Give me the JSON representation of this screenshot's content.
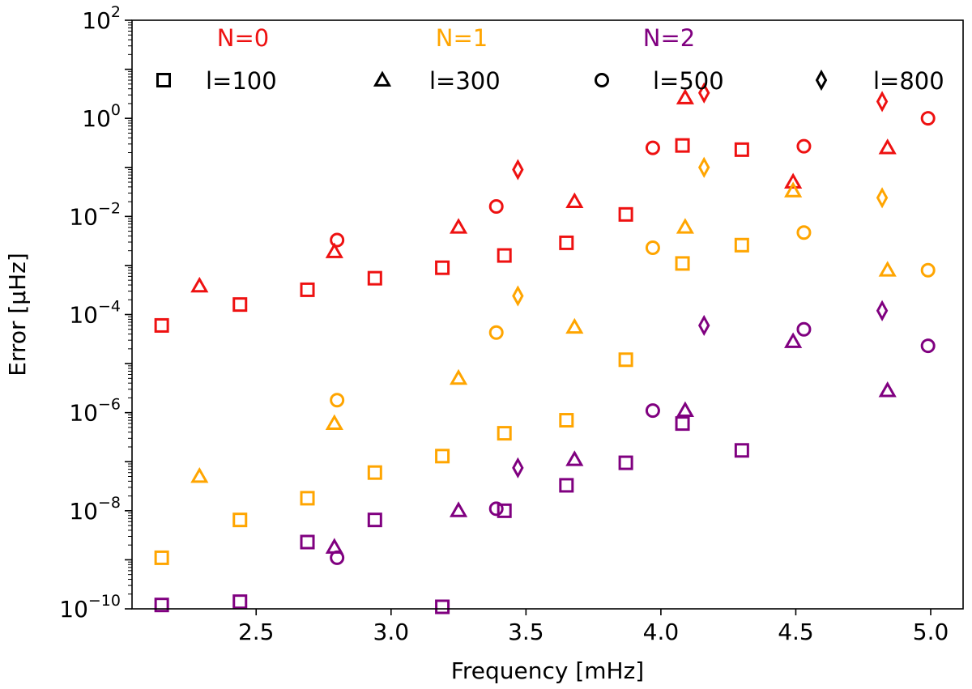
{
  "chart_data": {
    "type": "scatter",
    "xlabel": "Frequency [mHz]",
    "ylabel": "Error [μHz]",
    "yscale": "log",
    "xlim": [
      2.04,
      5.12
    ],
    "ylim": [
      1e-10,
      100
    ],
    "xticks": [
      2.5,
      3.0,
      3.5,
      4.0,
      4.5,
      5.0
    ],
    "xtick_labels": [
      "2.5",
      "3.0",
      "3.5",
      "4.0",
      "4.5",
      "5.0"
    ],
    "yticks": [
      {
        "value": 1e-10,
        "base": "10",
        "exp": "−10"
      },
      {
        "value": 1e-08,
        "base": "10",
        "exp": "−8"
      },
      {
        "value": 1e-06,
        "base": "10",
        "exp": "−6"
      },
      {
        "value": 0.0001,
        "base": "10",
        "exp": "−4"
      },
      {
        "value": 0.01,
        "base": "10",
        "exp": "−2"
      },
      {
        "value": 1,
        "base": "10",
        "exp": "0"
      },
      {
        "value": 100,
        "base": "10",
        "exp": "2"
      }
    ],
    "legend_colors": [
      {
        "label": "N=0",
        "color": "#ee1111"
      },
      {
        "label": "N=1",
        "color": "#ffa500"
      },
      {
        "label": "N=2",
        "color": "#800080"
      }
    ],
    "legend_markers": [
      {
        "label": "l=100",
        "marker": "square"
      },
      {
        "label": "l=300",
        "marker": "triangle"
      },
      {
        "label": "l=500",
        "marker": "circle"
      },
      {
        "label": "l=800",
        "marker": "diamond"
      }
    ],
    "series": [
      {
        "name": "N=0, l=100",
        "color": "#ee1111",
        "marker": "square",
        "x": [
          2.15,
          2.44,
          2.69,
          2.94,
          3.19,
          3.42,
          3.65,
          3.87,
          4.08,
          4.3
        ],
        "y": [
          6e-05,
          0.00016,
          0.00032,
          0.00055,
          0.0009,
          0.0016,
          0.0029,
          0.011,
          0.28,
          0.23
        ]
      },
      {
        "name": "N=0, l=300",
        "color": "#ee1111",
        "marker": "triangle",
        "x": [
          2.29,
          2.79,
          3.25,
          3.68,
          4.09,
          4.49,
          4.84
        ],
        "y": [
          0.00038,
          0.0019,
          0.006,
          0.02,
          2.6,
          0.05,
          0.25
        ]
      },
      {
        "name": "N=0, l=500",
        "color": "#ee1111",
        "marker": "circle",
        "x": [
          2.8,
          3.39,
          3.97,
          4.53,
          4.99
        ],
        "y": [
          0.0033,
          0.016,
          0.25,
          0.27,
          1.0
        ]
      },
      {
        "name": "N=0, l=800",
        "color": "#ee1111",
        "marker": "diamond",
        "x": [
          3.47,
          4.16,
          4.82
        ],
        "y": [
          0.09,
          3.3,
          2.2
        ]
      },
      {
        "name": "N=1, l=100",
        "color": "#ffa500",
        "marker": "square",
        "x": [
          2.15,
          2.44,
          2.69,
          2.94,
          3.19,
          3.42,
          3.65,
          3.87,
          4.08,
          4.3
        ],
        "y": [
          1.1e-09,
          6.5e-09,
          1.8e-08,
          6e-08,
          1.3e-07,
          3.8e-07,
          7e-07,
          1.2e-05,
          0.0011,
          0.0026
        ]
      },
      {
        "name": "N=1, l=300",
        "color": "#ffa500",
        "marker": "triangle",
        "x": [
          2.29,
          2.79,
          3.25,
          3.68,
          4.09,
          4.49,
          4.84
        ],
        "y": [
          5e-08,
          6e-07,
          5e-06,
          5.5e-05,
          0.006,
          0.033,
          0.0008
        ]
      },
      {
        "name": "N=1, l=500",
        "color": "#ffa500",
        "marker": "circle",
        "x": [
          2.8,
          3.39,
          3.97,
          4.53,
          4.99
        ],
        "y": [
          1.8e-06,
          4.3e-05,
          0.0023,
          0.0047,
          0.0008
        ]
      },
      {
        "name": "N=1, l=800",
        "color": "#ffa500",
        "marker": "diamond",
        "x": [
          3.47,
          4.16,
          4.82
        ],
        "y": [
          0.00024,
          0.1,
          0.024
        ]
      },
      {
        "name": "N=2, l=100",
        "color": "#800080",
        "marker": "square",
        "x": [
          2.15,
          2.44,
          2.69,
          2.94,
          3.19,
          3.42,
          3.65,
          3.87,
          4.08,
          4.3
        ],
        "y": [
          1.2e-10,
          1.4e-10,
          2.3e-09,
          6.5e-09,
          1.1e-10,
          1e-08,
          3.3e-08,
          9.5e-08,
          6e-07,
          1.7e-07
        ]
      },
      {
        "name": "N=2, l=300",
        "color": "#800080",
        "marker": "triangle",
        "x": [
          2.79,
          3.25,
          3.68,
          4.09,
          4.49,
          4.84
        ],
        "y": [
          1.8e-09,
          1e-08,
          1.1e-07,
          1.1e-06,
          2.8e-05,
          2.8e-06
        ]
      },
      {
        "name": "N=2, l=500",
        "color": "#800080",
        "marker": "circle",
        "x": [
          2.8,
          3.39,
          3.97,
          4.53,
          4.99
        ],
        "y": [
          1.1e-09,
          1.1e-08,
          1.1e-06,
          5e-05,
          2.3e-05
        ]
      },
      {
        "name": "N=2, l=800",
        "color": "#800080",
        "marker": "diamond",
        "x": [
          3.47,
          4.16,
          4.82
        ],
        "y": [
          7.5e-08,
          6e-05,
          0.00012
        ]
      }
    ]
  }
}
